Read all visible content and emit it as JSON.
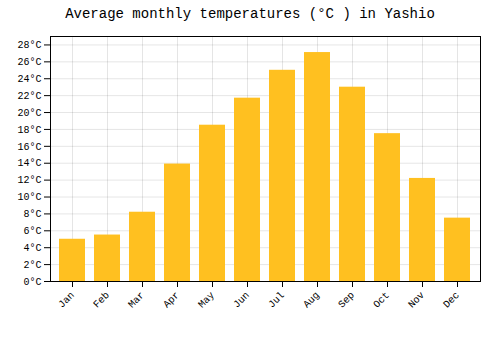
{
  "chart_data": {
    "type": "bar",
    "title": "Average monthly temperatures (°C ) in Yashio",
    "categories": [
      "Jan",
      "Feb",
      "Mar",
      "Apr",
      "May",
      "Jun",
      "Jul",
      "Aug",
      "Sep",
      "Oct",
      "Nov",
      "Dec"
    ],
    "values": [
      5.0,
      5.5,
      8.2,
      13.9,
      18.5,
      21.7,
      25.0,
      27.1,
      23.0,
      17.5,
      12.2,
      7.5
    ],
    "color": "#FFC020",
    "ylim": [
      0,
      29
    ],
    "yticks": [
      {
        "value": 0,
        "label": "0°C"
      },
      {
        "value": 2,
        "label": "2°C"
      },
      {
        "value": 4,
        "label": "4°C"
      },
      {
        "value": 6,
        "label": "6°C"
      },
      {
        "value": 8,
        "label": "8°C"
      },
      {
        "value": 10,
        "label": "10°C"
      },
      {
        "value": 12,
        "label": "12°C"
      },
      {
        "value": 14,
        "label": "14°C"
      },
      {
        "value": 16,
        "label": "16°C"
      },
      {
        "value": 18,
        "label": "18°C"
      },
      {
        "value": 20,
        "label": "20°C"
      },
      {
        "value": 22,
        "label": "22°C"
      },
      {
        "value": 24,
        "label": "24°C"
      },
      {
        "value": 26,
        "label": "26°C"
      },
      {
        "value": 28,
        "label": "28°C"
      }
    ],
    "grid": true
  }
}
